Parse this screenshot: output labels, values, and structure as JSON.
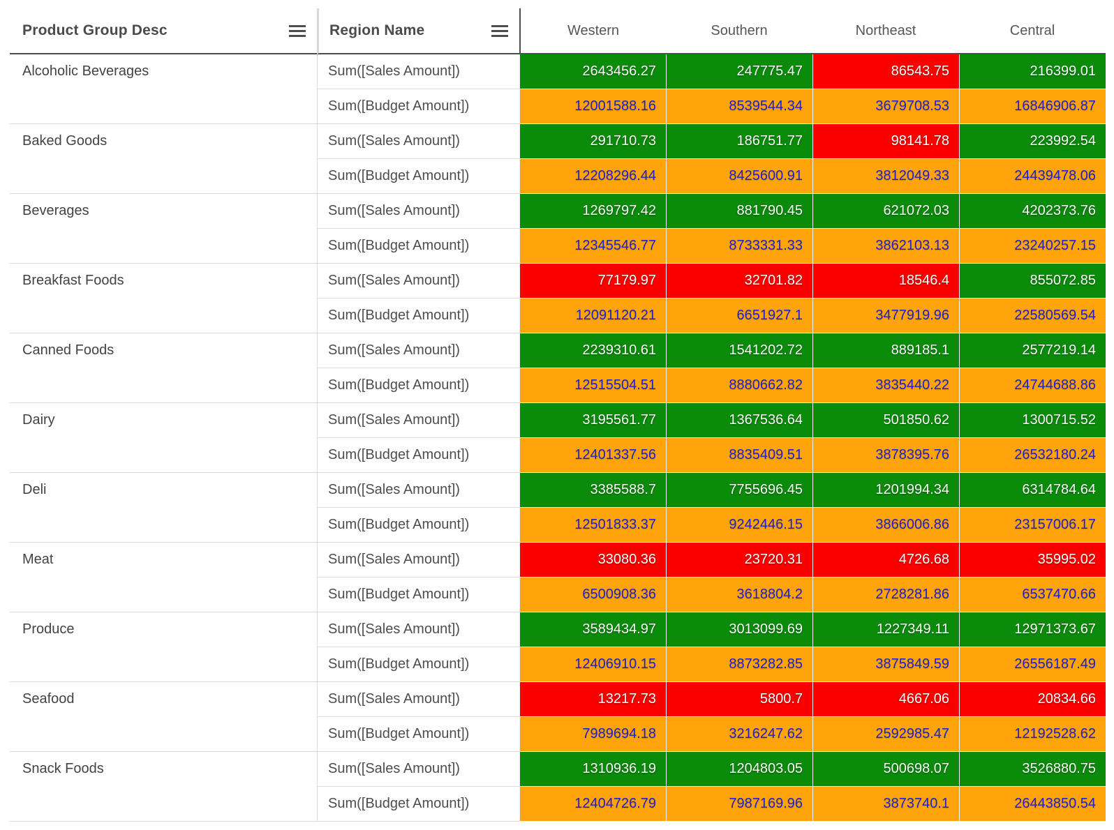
{
  "table": {
    "row_header": "Product Group Desc",
    "column_header": "Region Name",
    "region_columns": [
      "Western",
      "Southern",
      "Northeast",
      "Central"
    ],
    "sales_measure_label": "Sum([Sales Amount])",
    "budget_measure_label": "Sum([Budget Amount])",
    "icons": {
      "row_menu": "hamburger-menu-icon",
      "column_menu": "hamburger-menu-icon"
    }
  },
  "colors": {
    "sales_above_budget_bg": "#0A8C0A",
    "sales_below_budget_bg": "#FC0000",
    "sales_text": "#FFFFFF",
    "budget_bg": "#FFA40A",
    "budget_text": "#2222CC",
    "header_text": "#4A4A4A",
    "label_text": "#4D4D4D",
    "header_rule": "#4D4D4D",
    "gridline": "#DBDBDB"
  },
  "chart_data": {
    "type": "table",
    "row_dimension": "Product Group Desc",
    "column_dimension": "Region Name",
    "columns": [
      "Western",
      "Southern",
      "Northeast",
      "Central"
    ],
    "measures": [
      "Sum([Sales Amount])",
      "Sum([Budget Amount])"
    ],
    "legend_note": "sales cells green = above threshold, red = below; budget cells orange with blue text",
    "rows": [
      {
        "product_group": "Alcoholic Beverages",
        "sales": [
          "2643456.27",
          "247775.47",
          "86543.75",
          "216399.01"
        ],
        "sales_status": [
          "above",
          "above",
          "below",
          "above"
        ],
        "budget": [
          "12001588.16",
          "8539544.34",
          "3679708.53",
          "16846906.87"
        ]
      },
      {
        "product_group": "Baked Goods",
        "sales": [
          "291710.73",
          "186751.77",
          "98141.78",
          "223992.54"
        ],
        "sales_status": [
          "above",
          "above",
          "below",
          "above"
        ],
        "budget": [
          "12208296.44",
          "8425600.91",
          "3812049.33",
          "24439478.06"
        ]
      },
      {
        "product_group": "Beverages",
        "sales": [
          "1269797.42",
          "881790.45",
          "621072.03",
          "4202373.76"
        ],
        "sales_status": [
          "above",
          "above",
          "above",
          "above"
        ],
        "budget": [
          "12345546.77",
          "8733331.33",
          "3862103.13",
          "23240257.15"
        ]
      },
      {
        "product_group": "Breakfast Foods",
        "sales": [
          "77179.97",
          "32701.82",
          "18546.4",
          "855072.85"
        ],
        "sales_status": [
          "below",
          "below",
          "below",
          "above"
        ],
        "budget": [
          "12091120.21",
          "6651927.1",
          "3477919.96",
          "22580569.54"
        ]
      },
      {
        "product_group": "Canned Foods",
        "sales": [
          "2239310.61",
          "1541202.72",
          "889185.1",
          "2577219.14"
        ],
        "sales_status": [
          "above",
          "above",
          "above",
          "above"
        ],
        "budget": [
          "12515504.51",
          "8880662.82",
          "3835440.22",
          "24744688.86"
        ]
      },
      {
        "product_group": "Dairy",
        "sales": [
          "3195561.77",
          "1367536.64",
          "501850.62",
          "1300715.52"
        ],
        "sales_status": [
          "above",
          "above",
          "above",
          "above"
        ],
        "budget": [
          "12401337.56",
          "8835409.51",
          "3878395.76",
          "26532180.24"
        ]
      },
      {
        "product_group": "Deli",
        "sales": [
          "3385588.7",
          "7755696.45",
          "1201994.34",
          "6314784.64"
        ],
        "sales_status": [
          "above",
          "above",
          "above",
          "above"
        ],
        "budget": [
          "12501833.37",
          "9242446.15",
          "3866006.86",
          "23157006.17"
        ]
      },
      {
        "product_group": "Meat",
        "sales": [
          "33080.36",
          "23720.31",
          "4726.68",
          "35995.02"
        ],
        "sales_status": [
          "below",
          "below",
          "below",
          "below"
        ],
        "budget": [
          "6500908.36",
          "3618804.2",
          "2728281.86",
          "6537470.66"
        ]
      },
      {
        "product_group": "Produce",
        "sales": [
          "3589434.97",
          "3013099.69",
          "1227349.11",
          "12971373.67"
        ],
        "sales_status": [
          "above",
          "above",
          "above",
          "above"
        ],
        "budget": [
          "12406910.15",
          "8873282.85",
          "3875849.59",
          "26556187.49"
        ]
      },
      {
        "product_group": "Seafood",
        "sales": [
          "13217.73",
          "5800.7",
          "4667.06",
          "20834.66"
        ],
        "sales_status": [
          "below",
          "below",
          "below",
          "below"
        ],
        "budget": [
          "7989694.18",
          "3216247.62",
          "2592985.47",
          "12192528.62"
        ]
      },
      {
        "product_group": "Snack Foods",
        "sales": [
          "1310936.19",
          "1204803.05",
          "500698.07",
          "3526880.75"
        ],
        "sales_status": [
          "above",
          "above",
          "above",
          "above"
        ],
        "budget": [
          "12404726.79",
          "7987169.96",
          "3873740.1",
          "26443850.54"
        ]
      }
    ]
  }
}
